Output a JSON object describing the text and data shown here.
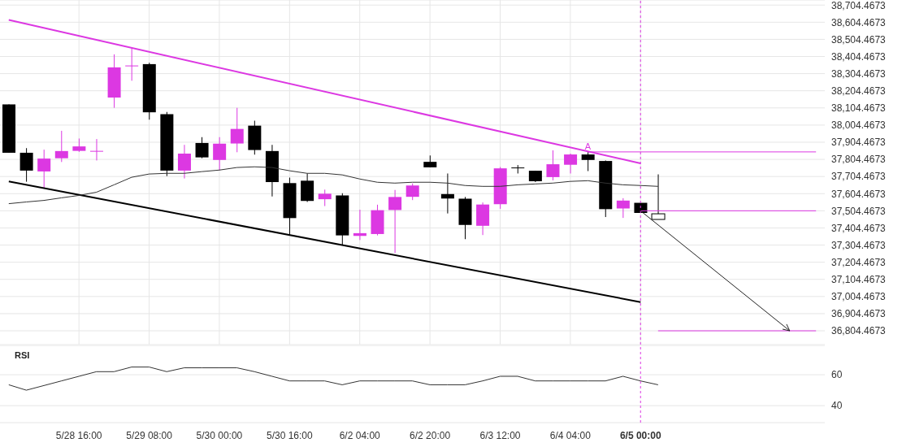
{
  "chart_data": [
    {
      "type": "candlestick",
      "categories": [
        null,
        null,
        null,
        null,
        "5/28 16:00",
        null,
        null,
        null,
        "5/29 08:00",
        null,
        null,
        null,
        "5/30 00:00",
        null,
        null,
        null,
        "5/30 16:00",
        null,
        null,
        null,
        "6/2 04:00",
        null,
        null,
        null,
        "6/2 20:00",
        null,
        null,
        null,
        "6/3 12:00",
        null,
        null,
        null,
        "6/4 04:00",
        null,
        null,
        null,
        "6/5 00:00",
        null,
        null,
        null,
        null,
        null,
        null,
        null,
        null,
        null,
        null
      ],
      "ohlc": [
        [
          38125,
          38125,
          37843,
          37843
        ],
        [
          37843,
          37870,
          37674,
          37739
        ],
        [
          37734,
          37861,
          37636,
          37809
        ],
        [
          37811,
          37971,
          37789,
          37853
        ],
        [
          37854,
          37926,
          37848,
          37880
        ],
        [
          37853,
          37923,
          37798,
          37854
        ],
        [
          38165,
          38417,
          38105,
          38341
        ],
        [
          38350,
          38454,
          38263,
          38352
        ],
        [
          38360,
          38368,
          38036,
          38079
        ],
        [
          38068,
          38081,
          37707,
          37739
        ],
        [
          37739,
          37889,
          37693,
          37838
        ],
        [
          37900,
          37934,
          37811,
          37816
        ],
        [
          37801,
          37934,
          37741,
          37896
        ],
        [
          37897,
          38105,
          37846,
          37982
        ],
        [
          38001,
          38030,
          37832,
          37859
        ],
        [
          37853,
          37889,
          37588,
          37672
        ],
        [
          37666,
          37698,
          37366,
          37462
        ],
        [
          37680,
          37722,
          37556,
          37562
        ],
        [
          37572,
          37628,
          37532,
          37604
        ],
        [
          37594,
          37607,
          37302,
          37361
        ],
        [
          37358,
          37511,
          37334,
          37374
        ],
        [
          37369,
          37540,
          37361,
          37508
        ],
        [
          37509,
          37626,
          37258,
          37585
        ],
        [
          37586,
          37664,
          37567,
          37652
        ],
        [
          37790,
          37827,
          37758,
          37758
        ],
        [
          37602,
          37722,
          37489,
          37576
        ],
        [
          37575,
          37585,
          37339,
          37422
        ],
        [
          37417,
          37553,
          37363,
          37541
        ],
        [
          37543,
          37760,
          37516,
          37752
        ],
        [
          37757,
          37771,
          37722,
          37756
        ],
        [
          37738,
          37738,
          37672,
          37677
        ],
        [
          37701,
          37857,
          37682,
          37776
        ],
        [
          37773,
          37838,
          37722,
          37833
        ],
        [
          37833,
          37851,
          37736,
          37801
        ],
        [
          37795,
          37798,
          37468,
          37514
        ],
        [
          37518,
          37578,
          37463,
          37564
        ],
        [
          37551,
          37551,
          37492,
          37492
        ],
        [
          37487,
          37717,
          37454,
          37454
        ],
        null,
        null,
        null,
        null,
        null,
        null,
        null,
        null,
        null
      ],
      "colors": [
        "#000000",
        "#000000",
        "#dc38e2",
        "#dc38e2",
        "#dc38e2",
        "#dc38e2",
        "#dc38e2",
        "#dc38e2",
        "#000000",
        "#000000",
        "#dc38e2",
        "#000000",
        "#dc38e2",
        "#dc38e2",
        "#000000",
        "#000000",
        "#000000",
        "#000000",
        "#dc38e2",
        "#000000",
        "#dc38e2",
        "#dc38e2",
        "#dc38e2",
        "#dc38e2",
        "#000000",
        "#000000",
        "#000000",
        "#dc38e2",
        "#dc38e2",
        "#000000",
        "#000000",
        "#dc38e2",
        "#dc38e2",
        "#000000",
        "#000000",
        "#dc38e2",
        "#000000",
        "#ffffff",
        null,
        null,
        null,
        null,
        null,
        null,
        null,
        null,
        null
      ],
      "series": [
        {
          "type": "line",
          "color": "#dc38e2",
          "values": [
            38618,
            null,
            null,
            null,
            null,
            null,
            null,
            null,
            null,
            null,
            null,
            null,
            null,
            null,
            null,
            null,
            null,
            null,
            null,
            null,
            null,
            null,
            null,
            null,
            null,
            null,
            null,
            null,
            null,
            null,
            null,
            null,
            null,
            null,
            null,
            null,
            37781,
            null,
            null,
            null,
            null,
            null,
            null,
            null,
            null,
            null,
            null
          ]
        },
        {
          "type": "line",
          "color": "#000000",
          "values": [
            37676,
            null,
            null,
            null,
            null,
            null,
            null,
            null,
            null,
            null,
            null,
            null,
            null,
            null,
            null,
            null,
            null,
            null,
            null,
            null,
            null,
            null,
            null,
            null,
            null,
            null,
            null,
            null,
            null,
            null,
            null,
            null,
            null,
            null,
            null,
            null,
            36972,
            null,
            null,
            null,
            null,
            null,
            null,
            null,
            null,
            null,
            null
          ]
        },
        {
          "type": "line",
          "color": "#333333",
          "values": [
            37546,
            37556,
            37565,
            37580,
            37594,
            37613,
            37656,
            37700,
            37719,
            37723,
            37723,
            37733,
            37742,
            37757,
            37761,
            37757,
            37738,
            37723,
            37723,
            37714,
            37690,
            37671,
            37666,
            37671,
            37671,
            37666,
            37652,
            37647,
            37647,
            37656,
            37661,
            37666,
            37676,
            37680,
            37666,
            37656,
            37652,
            37647,
            null,
            null,
            null,
            null,
            null,
            null,
            null,
            null,
            null
          ]
        }
      ],
      "ylim": [
        36724,
        38734
      ],
      "yticks": [
        {
          "value": 36804.4673,
          "label": "36,804.4673"
        },
        {
          "value": 36904.4673,
          "label": "36,904.4673"
        },
        {
          "value": 37004.4673,
          "label": "37,004.4673"
        },
        {
          "value": 37104.4673,
          "label": "37,104.4673"
        },
        {
          "value": 37204.4673,
          "label": "37,204.4673"
        },
        {
          "value": 37304.4673,
          "label": "37,304.4673"
        },
        {
          "value": 37404.4673,
          "label": "37,404.4673"
        },
        {
          "value": 37504.4673,
          "label": "37,504.4673"
        },
        {
          "value": 37604.4673,
          "label": "37,604.4673"
        },
        {
          "value": 37704.4673,
          "label": "37,704.4673"
        },
        {
          "value": 37804.4673,
          "label": "37,804.4673"
        },
        {
          "value": 37904.4673,
          "label": "37,904.4673"
        },
        {
          "value": 38004.4673,
          "label": "38,004.4673"
        },
        {
          "value": 38104.4673,
          "label": "38,104.4673"
        },
        {
          "value": 38204.4673,
          "label": "38,204.4673"
        },
        {
          "value": 38304.4673,
          "label": "38,304.4673"
        },
        {
          "value": 38404.4673,
          "label": "38,404.4673"
        },
        {
          "value": 38504.4673,
          "label": "38,504.4673"
        },
        {
          "value": 38604.4673,
          "label": "38,604.4673"
        },
        {
          "value": 38704.4673,
          "label": "38,704.4673"
        }
      ],
      "ref_lines": [
        {
          "axis": "x",
          "value": "6/5 00:00",
          "color": "#dc38e2",
          "line_style": "dashed"
        },
        {
          "axis": "y",
          "value": 37848,
          "label": "A",
          "color": "#dc38e2"
        },
        {
          "axis": "y",
          "value": 37504.4673,
          "color": "#dc38e2"
        },
        {
          "axis": "y",
          "value": 36804.4673,
          "color": "#dc38e2"
        }
      ],
      "grid": true,
      "legend": false,
      "tick_labels": "y"
    },
    {
      "type": "line",
      "title": "RSI",
      "categories": [
        null,
        null,
        null,
        null,
        "5/28 16:00",
        null,
        null,
        null,
        "5/29 08:00",
        null,
        null,
        null,
        "5/30 00:00",
        null,
        null,
        null,
        "5/30 16:00",
        null,
        null,
        null,
        "6/2 04:00",
        null,
        null,
        null,
        "6/2 20:00",
        null,
        null,
        null,
        "6/3 12:00",
        null,
        null,
        null,
        "6/4 04:00",
        null,
        null,
        null,
        "6/5 00:00",
        null,
        null,
        null,
        null,
        null,
        null,
        null,
        null,
        null,
        null
      ],
      "series": [
        {
          "color": "#333333",
          "values": [
            53.5,
            50,
            53,
            56,
            59,
            62,
            62,
            65,
            65,
            62,
            64.5,
            64.5,
            64.5,
            64.5,
            62,
            59,
            56,
            56,
            56,
            53.5,
            56,
            56,
            56,
            56,
            53.5,
            53.5,
            53.5,
            56,
            59,
            59,
            56,
            56,
            56,
            56,
            56,
            59,
            56,
            53.5,
            null,
            null,
            null,
            null,
            null,
            null,
            null,
            null,
            null
          ]
        }
      ],
      "ylim": [
        29,
        79
      ],
      "yticks": [
        40,
        60
      ],
      "ref_lines": [
        {
          "axis": "x",
          "value": "6/5 00:00",
          "color": "#dc38e2",
          "line_style": "dashed"
        }
      ],
      "grid": "y",
      "legend": false,
      "marker": "none"
    }
  ]
}
